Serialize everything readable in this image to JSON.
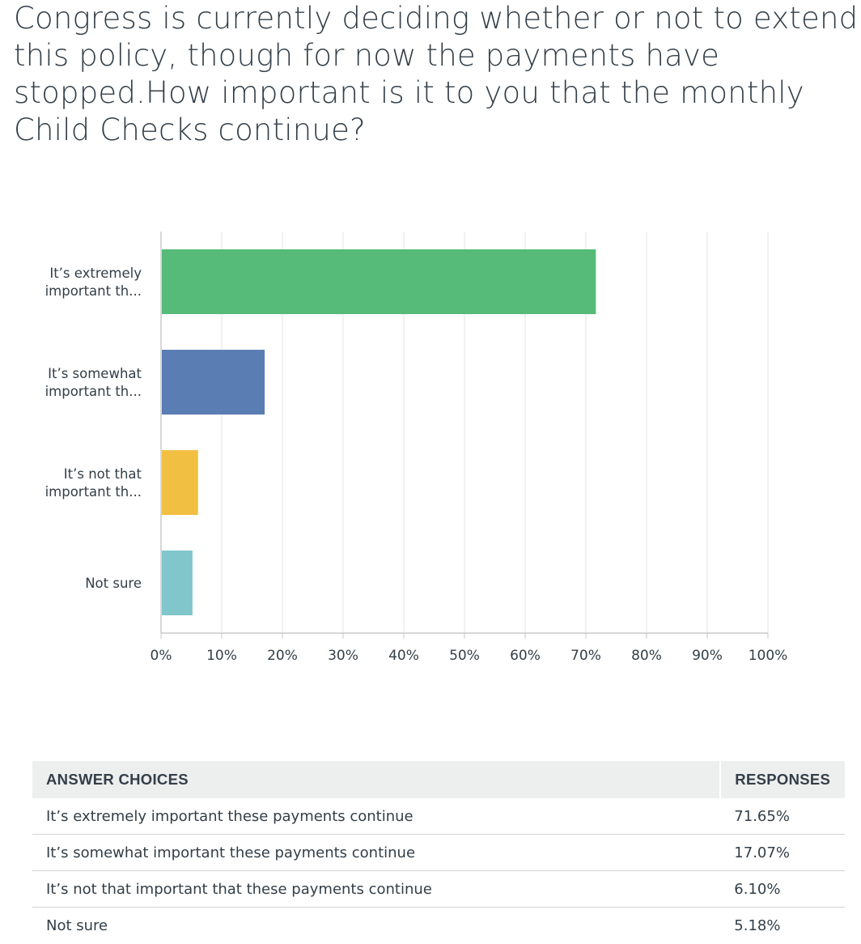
{
  "question": "Congress is currently deciding whether or not to extend this policy, though for now the payments have stopped.How important is it to you that the monthly Child Checks continue?",
  "colors": {
    "extremely": "#56bb78",
    "somewhat": "#5a7db3",
    "not_that": "#f1bf42",
    "not_sure": "#80c6cb",
    "grid": "#e1e3e4",
    "axis": "#c8cacb",
    "text": "#333e48"
  },
  "chart_data": {
    "type": "bar",
    "orientation": "horizontal",
    "categories": [
      [
        "It’s extremely",
        "important th..."
      ],
      [
        "It’s somewhat",
        "important th..."
      ],
      [
        "It’s not that",
        "important th..."
      ],
      [
        "Not sure"
      ]
    ],
    "values": [
      71.65,
      17.07,
      6.1,
      5.18
    ],
    "xlim": [
      0,
      100
    ],
    "ticks": [
      "0%",
      "10%",
      "20%",
      "30%",
      "40%",
      "50%",
      "60%",
      "70%",
      "80%",
      "90%",
      "100%"
    ],
    "tick_values": [
      0,
      10,
      20,
      30,
      40,
      50,
      60,
      70,
      80,
      90,
      100
    ],
    "grid": true,
    "xlabel": "",
    "ylabel": ""
  },
  "table": {
    "headers": {
      "choice": "ANSWER CHOICES",
      "responses": "RESPONSES"
    },
    "rows": [
      {
        "choice": "It’s extremely important these payments continue",
        "response": "71.65%"
      },
      {
        "choice": "It’s somewhat important these payments continue",
        "response": "17.07%"
      },
      {
        "choice": "It’s not that important that these payments continue",
        "response": "6.10%"
      },
      {
        "choice": "Not sure",
        "response": "5.18%"
      }
    ]
  }
}
